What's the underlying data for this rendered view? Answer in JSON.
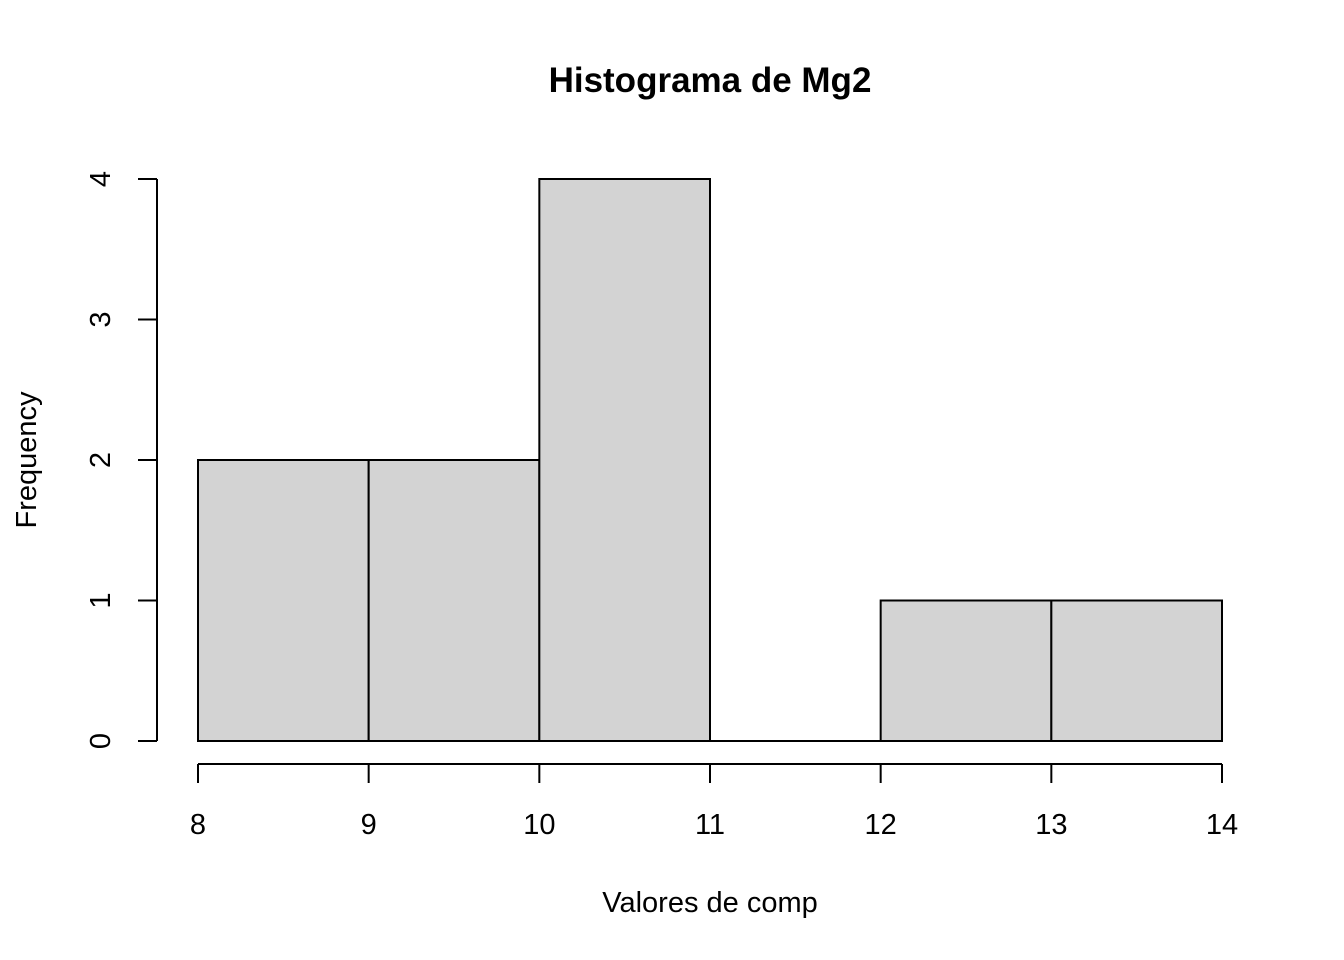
{
  "chart_data": {
    "type": "bar",
    "title": "Histograma de Mg2",
    "xlabel": "Valores de comp",
    "ylabel": "Frequency",
    "bins": [
      {
        "start": 8,
        "end": 9,
        "count": 2
      },
      {
        "start": 9,
        "end": 10,
        "count": 2
      },
      {
        "start": 10,
        "end": 11,
        "count": 4
      },
      {
        "start": 11,
        "end": 12,
        "count": 0
      },
      {
        "start": 12,
        "end": 13,
        "count": 1
      },
      {
        "start": 13,
        "end": 14,
        "count": 1
      }
    ],
    "x_ticks": [
      "8",
      "9",
      "10",
      "11",
      "12",
      "13",
      "14"
    ],
    "y_ticks": [
      "0",
      "1",
      "2",
      "3",
      "4"
    ],
    "xlim": [
      8,
      14
    ],
    "ylim": [
      0,
      4
    ],
    "bar_color": "#d3d3d3",
    "grid": false,
    "legend": "none"
  }
}
